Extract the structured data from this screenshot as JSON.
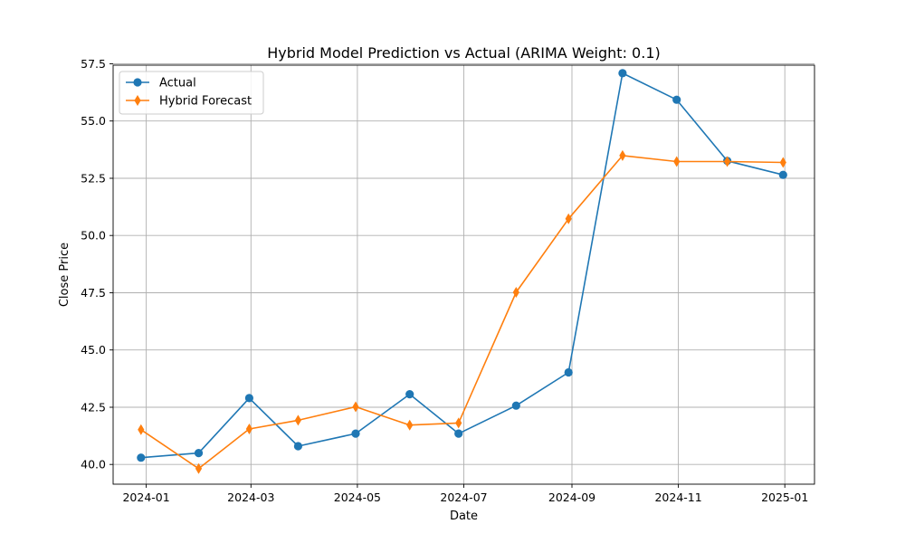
{
  "chart_data": {
    "type": "line",
    "title": "Hybrid Model Prediction vs Actual (ARIMA Weight: 0.1)",
    "xlabel": "Date",
    "ylabel": "Close Price",
    "xlim": [
      "2023-12-13",
      "2025-01-18"
    ],
    "ylim": [
      39.14,
      57.44
    ],
    "x_ticks": [
      {
        "date": "2024-01-01",
        "label": "2024-01"
      },
      {
        "date": "2024-03-01",
        "label": "2024-03"
      },
      {
        "date": "2024-05-01",
        "label": "2024-05"
      },
      {
        "date": "2024-07-01",
        "label": "2024-07"
      },
      {
        "date": "2024-09-01",
        "label": "2024-09"
      },
      {
        "date": "2024-11-01",
        "label": "2024-11"
      },
      {
        "date": "2025-01-01",
        "label": "2025-01"
      }
    ],
    "y_ticks": [
      {
        "value": 40.0,
        "label": "40.0"
      },
      {
        "value": 42.5,
        "label": "42.5"
      },
      {
        "value": 45.0,
        "label": "45.0"
      },
      {
        "value": 47.5,
        "label": "47.5"
      },
      {
        "value": 50.0,
        "label": "50.0"
      },
      {
        "value": 52.5,
        "label": "52.5"
      },
      {
        "value": 55.0,
        "label": "55.0"
      },
      {
        "value": 57.5,
        "label": "57.5"
      }
    ],
    "grid": true,
    "legend_position": "top-left",
    "x": [
      "2023-12-29",
      "2024-01-31",
      "2024-02-29",
      "2024-03-28",
      "2024-04-30",
      "2024-05-31",
      "2024-06-28",
      "2024-07-31",
      "2024-08-30",
      "2024-09-30",
      "2024-10-31",
      "2024-11-29",
      "2024-12-31"
    ],
    "series": [
      {
        "name": "Actual",
        "color": "#1f77b4",
        "marker": "circle",
        "values": [
          40.3,
          40.5,
          42.9,
          40.8,
          41.35,
          43.07,
          41.35,
          42.57,
          44.02,
          57.09,
          55.93,
          53.26,
          52.65
        ]
      },
      {
        "name": "Hybrid Forecast",
        "color": "#ff7f0e",
        "marker": "diamond",
        "values": [
          41.52,
          39.82,
          41.55,
          41.93,
          42.52,
          41.72,
          41.81,
          47.52,
          50.73,
          53.49,
          53.23,
          53.23,
          53.19
        ]
      }
    ]
  }
}
